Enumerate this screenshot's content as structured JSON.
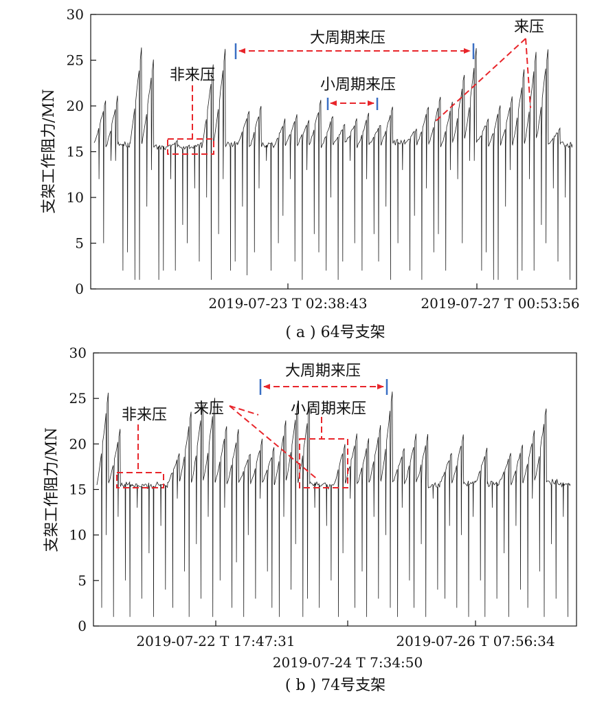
{
  "colors": {
    "trace": "#1a1a1a",
    "annotation": "#e8252a",
    "marker": "#3a6fc4",
    "axis": "#111111"
  },
  "chart_data": [
    {
      "type": "line",
      "caption": "( a ) 64号支架",
      "ylabel": "支架工作阻力/MN",
      "xlabel": "",
      "ylim": [
        0,
        30
      ],
      "yticks": [
        0,
        5,
        10,
        15,
        20,
        25,
        30
      ],
      "xtick_labels": [
        "2019-07-23 T 02:38:43",
        "2019-07-27 T 00:53:56"
      ],
      "annotations": {
        "big_period": "大周期来压",
        "small_period": "小周期来压",
        "non_weighting": "非来压",
        "weighting": "来压"
      },
      "series": [
        {
          "cycles": [
            {
              "base": 16.0,
              "peak": 20.5
            },
            {
              "base": 15.5,
              "peak": 21.0
            },
            {
              "base": 15.8,
              "peak": 15.8
            },
            {
              "base": 16.0,
              "peak": 26.3
            },
            {
              "base": 16.0,
              "peak": 25.0
            },
            {
              "base": 15.5,
              "peak": 15.5
            },
            {
              "base": 15.4,
              "peak": 16.2
            },
            {
              "base": 15.5,
              "peak": 15.8
            },
            {
              "base": 15.3,
              "peak": 16.0
            },
            {
              "base": 15.5,
              "peak": 24.5
            },
            {
              "base": 16.0,
              "peak": 26.2
            },
            {
              "base": 15.8,
              "peak": 16.2
            },
            {
              "base": 15.8,
              "peak": 19.5
            },
            {
              "base": 15.5,
              "peak": 20.0
            },
            {
              "base": 15.8,
              "peak": 15.8
            },
            {
              "base": 15.6,
              "peak": 18.5
            },
            {
              "base": 15.8,
              "peak": 19.0
            },
            {
              "base": 15.8,
              "peak": 18.5
            },
            {
              "base": 15.8,
              "peak": 20.5
            },
            {
              "base": 15.5,
              "peak": 19.0
            },
            {
              "base": 15.8,
              "peak": 18.0
            },
            {
              "base": 16.0,
              "peak": 18.5
            },
            {
              "base": 15.5,
              "peak": 19.2
            },
            {
              "base": 15.8,
              "peak": 18.0
            },
            {
              "base": 15.8,
              "peak": 20.0
            },
            {
              "base": 16.0,
              "peak": 16.0
            },
            {
              "base": 15.8,
              "peak": 17.5
            },
            {
              "base": 15.8,
              "peak": 20.0
            },
            {
              "base": 15.8,
              "peak": 21.0
            },
            {
              "base": 15.5,
              "peak": 20.5
            },
            {
              "base": 16.0,
              "peak": 23.5
            },
            {
              "base": 16.5,
              "peak": 26.3
            },
            {
              "base": 16.0,
              "peak": 18.5
            },
            {
              "base": 15.6,
              "peak": 20.0
            },
            {
              "base": 15.8,
              "peak": 21.0
            },
            {
              "base": 15.8,
              "peak": 24.0
            },
            {
              "base": 16.0,
              "peak": 26.0
            },
            {
              "base": 16.5,
              "peak": 26.3
            },
            {
              "base": 15.8,
              "peak": 17.5
            },
            {
              "base": 15.8,
              "peak": 16.0
            }
          ],
          "drops": [
            12,
            5,
            14,
            14,
            2,
            4,
            1,
            1,
            9,
            13,
            1,
            2,
            12,
            2,
            7,
            5,
            11,
            3,
            10,
            1,
            6,
            12,
            2,
            3,
            9,
            1.5,
            4,
            11,
            14,
            2,
            5,
            8,
            12,
            3,
            1,
            13,
            6,
            4,
            2,
            10,
            1,
            3,
            14,
            5,
            2,
            12,
            6,
            3,
            9,
            1,
            5,
            13,
            2,
            8,
            1,
            11,
            4,
            6,
            2,
            13
          ]
        }
      ]
    },
    {
      "type": "line",
      "caption": "( b ) 74号支架",
      "ylabel": "支架工作阻力/MN",
      "xlabel": "",
      "ylim": [
        0,
        30
      ],
      "yticks": [
        0,
        5,
        10,
        15,
        20,
        25,
        30
      ],
      "xtick_labels": [
        "2019-07-22 T 17:47:31",
        "2019-07-24 T 7:34:50",
        "2019-07-26 T 07:56:34"
      ],
      "annotations": {
        "big_period": "大周期来压",
        "small_period": "小周期来压",
        "non_weighting": "非来压",
        "weighting": "来压"
      },
      "series": [
        {
          "cycles": [
            {
              "base": 15.5,
              "peak": 25.5
            },
            {
              "base": 15.8,
              "peak": 21.5
            },
            {
              "base": 15.5,
              "peak": 15.8
            },
            {
              "base": 15.4,
              "peak": 16.0
            },
            {
              "base": 15.4,
              "peak": 15.8
            },
            {
              "base": 15.5,
              "peak": 15.6
            },
            {
              "base": 15.8,
              "peak": 19.0
            },
            {
              "base": 16.0,
              "peak": 23.5
            },
            {
              "base": 15.8,
              "peak": 24.5
            },
            {
              "base": 16.0,
              "peak": 25.0
            },
            {
              "base": 15.8,
              "peak": 22.0
            },
            {
              "base": 15.6,
              "peak": 21.5
            },
            {
              "base": 15.8,
              "peak": 19.0
            },
            {
              "base": 15.6,
              "peak": 20.5
            },
            {
              "base": 15.8,
              "peak": 19.5
            },
            {
              "base": 15.6,
              "peak": 22.5
            },
            {
              "base": 16.0,
              "peak": 24.5
            },
            {
              "base": 15.8,
              "peak": 24.0
            },
            {
              "base": 15.6,
              "peak": 16.0
            },
            {
              "base": 15.4,
              "peak": 16.0
            },
            {
              "base": 15.5,
              "peak": 20.0
            },
            {
              "base": 15.8,
              "peak": 21.0
            },
            {
              "base": 15.6,
              "peak": 20.5
            },
            {
              "base": 15.8,
              "peak": 22.0
            },
            {
              "base": 16.0,
              "peak": 25.8
            },
            {
              "base": 15.8,
              "peak": 19.5
            },
            {
              "base": 15.6,
              "peak": 21.0
            },
            {
              "base": 15.8,
              "peak": 21.0
            },
            {
              "base": 15.5,
              "peak": 16.0
            },
            {
              "base": 15.8,
              "peak": 19.0
            },
            {
              "base": 15.8,
              "peak": 21.0
            },
            {
              "base": 15.6,
              "peak": 16.2
            },
            {
              "base": 15.8,
              "peak": 19.5
            },
            {
              "base": 15.6,
              "peak": 16.0
            },
            {
              "base": 15.8,
              "peak": 19.0
            },
            {
              "base": 15.6,
              "peak": 20.0
            },
            {
              "base": 15.8,
              "peak": 21.5
            },
            {
              "base": 16.0,
              "peak": 24.0
            },
            {
              "base": 15.8,
              "peak": 16.2
            },
            {
              "base": 15.6,
              "peak": 16.0
            }
          ],
          "drops": [
            2,
            10,
            1,
            12,
            5,
            1,
            13,
            3,
            8,
            1,
            11,
            4,
            2,
            14,
            6,
            1,
            9,
            3,
            12,
            1,
            5,
            13,
            2,
            7,
            1,
            10,
            3,
            14,
            6,
            2,
            1,
            12,
            4,
            9,
            1,
            3,
            13,
            2,
            11,
            5,
            1,
            8,
            14,
            2,
            6,
            1,
            12,
            3,
            10,
            2,
            1,
            13,
            5,
            2,
            9,
            1,
            14,
            4,
            3,
            11
          ]
        }
      ]
    }
  ]
}
